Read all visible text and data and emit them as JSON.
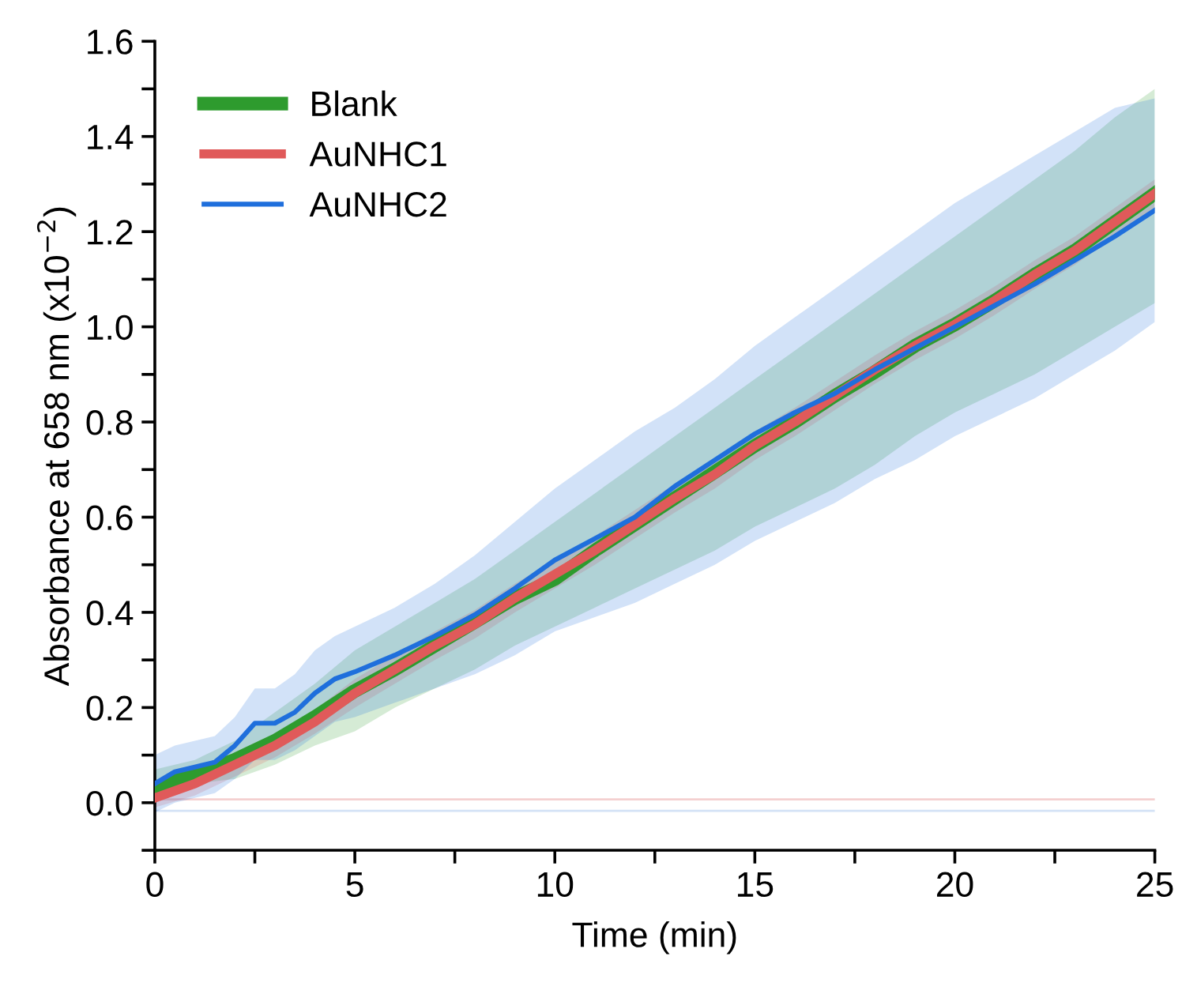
{
  "chart_data": {
    "type": "line",
    "xlabel": "Time (min)",
    "ylabel": "Absorbance at 658 nm (x10$^{−2}$)",
    "xlim": [
      0,
      25
    ],
    "ylim": [
      -0.1,
      1.6
    ],
    "xticks": [
      0,
      {
        "value": 2.5,
        "label": null
      },
      5,
      {
        "value": 7.5,
        "label": null
      },
      10,
      {
        "value": 12.5,
        "label": null
      },
      15,
      {
        "value": 17.5,
        "label": null
      },
      20,
      {
        "value": 22.5,
        "label": null
      },
      25
    ],
    "yticks": [
      {
        "value": -0.1,
        "label": null
      },
      {
        "value": 0,
        "label": "0.0"
      },
      {
        "value": 0.1,
        "label": null
      },
      0.2,
      {
        "value": 0.3,
        "label": null
      },
      0.4,
      {
        "value": 0.5,
        "label": null
      },
      0.6,
      {
        "value": 0.7,
        "label": null
      },
      0.8,
      {
        "value": 0.9,
        "label": null
      },
      {
        "value": 1.0,
        "label": "1.0"
      },
      {
        "value": 1.1,
        "label": null
      },
      1.2,
      {
        "value": 1.3,
        "label": null
      },
      1.4,
      {
        "value": 1.5,
        "label": null
      },
      1.6
    ],
    "legend": "top left",
    "grid": false,
    "marker": "none",
    "line_style": "solid",
    "ref_lines": [
      {
        "axis": "y",
        "value": 0.007,
        "color": "#f4d0d0"
      },
      {
        "axis": "y",
        "value": -0.017,
        "color": "#d4e2f6"
      }
    ],
    "x": [
      0,
      1,
      2,
      3,
      4,
      5,
      6,
      7,
      8,
      9,
      10,
      11,
      12,
      13,
      14,
      15,
      16,
      17,
      18,
      19,
      20,
      21,
      22,
      23,
      24,
      25
    ],
    "series": [
      {
        "name": "Blank",
        "color": "#2e9b2e",
        "values": [
          0.03,
          0.06,
          0.09,
          0.13,
          0.18,
          0.235,
          0.28,
          0.33,
          0.38,
          0.43,
          0.47,
          0.53,
          0.585,
          0.64,
          0.695,
          0.75,
          0.8,
          0.855,
          0.905,
          0.96,
          1.005,
          1.055,
          1.11,
          1.16,
          1.22,
          1.28
        ],
        "lower": [
          0.0,
          0.04,
          0.05,
          0.08,
          0.12,
          0.15,
          0.2,
          0.24,
          0.28,
          0.33,
          0.37,
          0.41,
          0.45,
          0.49,
          0.53,
          0.58,
          0.62,
          0.66,
          0.71,
          0.77,
          0.82,
          0.86,
          0.9,
          0.95,
          1.0,
          1.05
        ],
        "upper": [
          0.07,
          0.09,
          0.13,
          0.19,
          0.25,
          0.32,
          0.37,
          0.42,
          0.47,
          0.53,
          0.59,
          0.65,
          0.71,
          0.77,
          0.83,
          0.89,
          0.95,
          1.01,
          1.07,
          1.13,
          1.19,
          1.25,
          1.31,
          1.37,
          1.44,
          1.5
        ]
      },
      {
        "name": "AuNHC1",
        "color": "#e05a5a",
        "values": [
          0.01,
          0.04,
          0.08,
          0.12,
          0.17,
          0.23,
          0.28,
          0.33,
          0.375,
          0.43,
          0.48,
          0.53,
          0.585,
          0.64,
          0.69,
          0.75,
          0.8,
          0.855,
          0.91,
          0.96,
          1.005,
          1.055,
          1.11,
          1.16,
          1.22,
          1.28
        ],
        "lower": [
          -0.01,
          0.015,
          0.055,
          0.095,
          0.145,
          0.2,
          0.25,
          0.3,
          0.345,
          0.4,
          0.45,
          0.5,
          0.555,
          0.61,
          0.66,
          0.72,
          0.77,
          0.825,
          0.88,
          0.93,
          0.975,
          1.025,
          1.08,
          1.13,
          1.19,
          1.25
        ],
        "upper": [
          0.03,
          0.065,
          0.105,
          0.145,
          0.195,
          0.26,
          0.31,
          0.36,
          0.405,
          0.46,
          0.51,
          0.56,
          0.615,
          0.67,
          0.72,
          0.78,
          0.83,
          0.885,
          0.94,
          0.99,
          1.035,
          1.085,
          1.14,
          1.19,
          1.25,
          1.31
        ]
      },
      {
        "name": "AuNHC2",
        "color": "#1f6fdc",
        "x": [
          0,
          0.5,
          1,
          1.5,
          2,
          2.5,
          3,
          3.5,
          4,
          4.5,
          5,
          6,
          7,
          8,
          9,
          10,
          11,
          12,
          13,
          14,
          15,
          16,
          17,
          18,
          19,
          20,
          21,
          22,
          23,
          24,
          25
        ],
        "values": [
          0.04,
          0.065,
          0.075,
          0.085,
          0.12,
          0.167,
          0.167,
          0.19,
          0.23,
          0.26,
          0.275,
          0.31,
          0.35,
          0.395,
          0.45,
          0.51,
          0.555,
          0.6,
          0.665,
          0.72,
          0.775,
          0.82,
          0.86,
          0.91,
          0.955,
          1.0,
          1.045,
          1.09,
          1.14,
          1.19,
          1.245
        ],
        "lower": [
          -0.02,
          0.0,
          0.01,
          0.02,
          0.05,
          0.09,
          0.09,
          0.11,
          0.14,
          0.17,
          0.18,
          0.21,
          0.24,
          0.27,
          0.31,
          0.36,
          0.39,
          0.42,
          0.46,
          0.5,
          0.55,
          0.59,
          0.63,
          0.68,
          0.72,
          0.77,
          0.81,
          0.85,
          0.9,
          0.95,
          1.01
        ],
        "upper": [
          0.1,
          0.12,
          0.13,
          0.14,
          0.18,
          0.24,
          0.24,
          0.27,
          0.32,
          0.35,
          0.37,
          0.41,
          0.46,
          0.52,
          0.59,
          0.66,
          0.72,
          0.78,
          0.83,
          0.89,
          0.96,
          1.02,
          1.08,
          1.14,
          1.2,
          1.26,
          1.31,
          1.36,
          1.41,
          1.46,
          1.48
        ]
      }
    ]
  }
}
